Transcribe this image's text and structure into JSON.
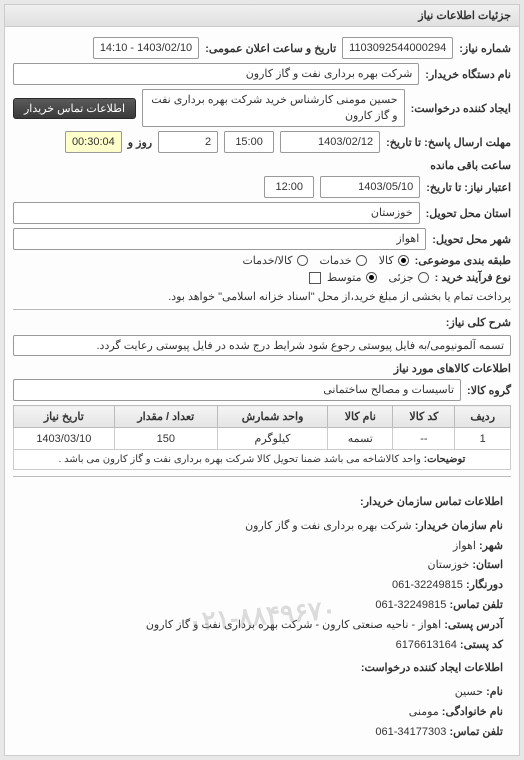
{
  "panel": {
    "title": "جزئیات اطلاعات نیاز"
  },
  "info": {
    "need_number_label": "شماره نیاز:",
    "need_number": "1103092544000294",
    "announce_label": "تاریخ و ساعت اعلان عمومی:",
    "announce_value": "1403/02/10 - 14:10",
    "buyer_org_label": "نام دستگاه خریدار:",
    "buyer_org": "شرکت بهره برداری نفت و گاز کارون",
    "creator_label": "ایجاد کننده درخواست:",
    "creator": "حسین مومنی کارشناس خرید شرکت بهره برداری نفت و گاز کارون",
    "contact_btn": "اطلاعات تماس خریدار",
    "deadline_send_label": "مهلت ارسال پاسخ: تا تاریخ:",
    "deadline_send_date": "1403/02/12",
    "deadline_send_time": "15:00",
    "days_remaining": "2",
    "days_remaining_label": "روز و",
    "time_remaining": "00:30:04",
    "time_remaining_label": "ساعت باقی مانده",
    "validity_label": "اعتبار نیاز: تا تاریخ:",
    "validity_date": "1403/05/10",
    "validity_time": "12:00",
    "province_label": "استان محل تحویل:",
    "province": "خوزستان",
    "city_label": "شهر محل تحویل:",
    "city": "اهواز",
    "pkg_label": "طبقه بندی موضوعی:",
    "pkg_options": {
      "kala": "کالا",
      "khadamat": "خدمات",
      "kalakhadamat": "کالا/خدمات"
    },
    "pkg_selected": "kala",
    "process_label": "نوع فرآیند خرید :",
    "process_options": {
      "small": "جزئی",
      "medium": "متوسط"
    },
    "process_selected": "medium",
    "payment_checkbox_label": "پرداخت تمام یا بخشی از مبلغ خرید،از محل \"اسناد خزانه اسلامی\" خواهد بود."
  },
  "desc": {
    "title_label": "شرح کلی نیاز:",
    "title_value": "تسمه آلمونیومی/به فایل پیوستی رجوع شود شرایط درج شده در فایل پیوستی رعایت گردد.",
    "goods_section": "اطلاعات کالاهای مورد نیاز",
    "group_label": "گروه کالا:",
    "group_value": "تاسیسات و مصالح ساختمانی"
  },
  "table": {
    "columns": [
      "ردیف",
      "کد کالا",
      "نام کالا",
      "واحد شمارش",
      "تعداد / مقدار",
      "تاریخ نیاز"
    ],
    "rows": [
      {
        "idx": "1",
        "code": "--",
        "name": "تسمه",
        "unit": "کیلوگرم",
        "qty": "150",
        "date": "1403/03/10"
      }
    ],
    "note_label": "توضیحات:",
    "note_value": "واحد کالاشاخه می باشد ضمنا تحویل کالا شرکت بهره برداری نفت و گاز کارون می باشد ."
  },
  "contact": {
    "header": "اطلاعات تماس سازمان خریدار:",
    "org_label": "نام سازمان خریدار:",
    "org": "شرکت بهره برداری نفت و گاز کارون",
    "city_label": "شهر:",
    "city": "اهواز",
    "prov_label": "استان:",
    "prov": "خوزستان",
    "tel_label": "دورنگار:",
    "tel": "32249815-061",
    "fax_label": "تلفن تماس:",
    "fax": "32249815-061",
    "addr_label": "آدرس پستی:",
    "addr": "اهواز - ناحیه صنعتی کارون - شرکت بهره برداری نفت و گاز کارون",
    "post_label": "کد پستی:",
    "post": "6176613164",
    "creator_header": "اطلاعات ایجاد کننده درخواست:",
    "name_label": "نام:",
    "name": "حسین",
    "lname_label": "نام خانوادگی:",
    "lname": "مومنی",
    "ctel_label": "تلفن تماس:",
    "ctel": "34177303-061",
    "watermark": "۰۲۱-۸۸۴۹۶۷۰"
  }
}
